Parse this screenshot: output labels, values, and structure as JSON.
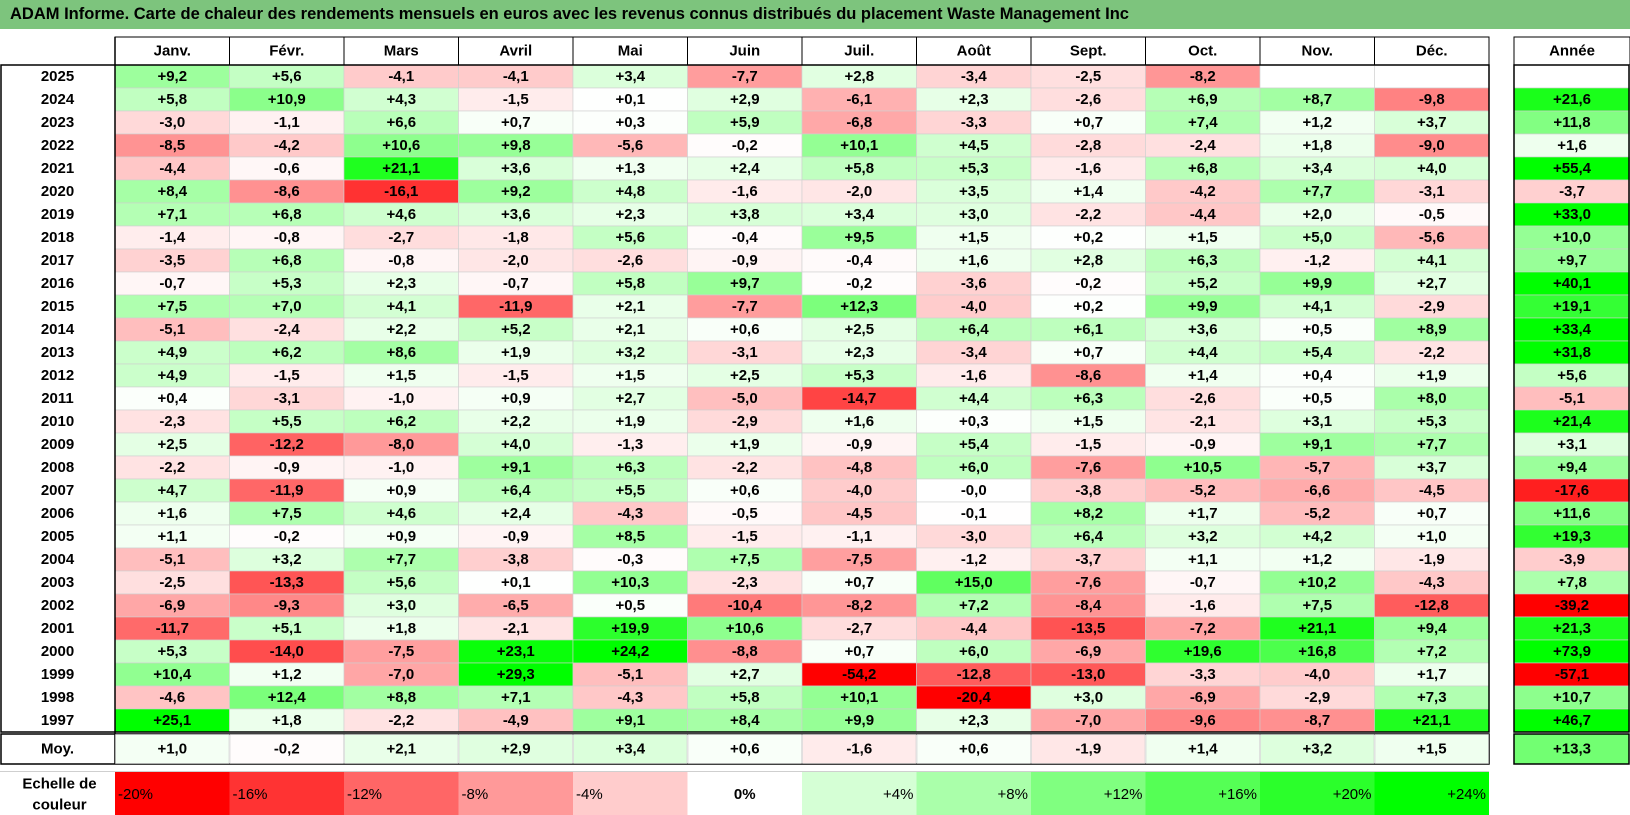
{
  "title": "ADAM Informe. Carte de chaleur des rendements mensuels en euros avec les revenus connus distribués du placement Waste Management Inc",
  "chart_data": {
    "type": "heatmap",
    "title": "ADAM Informe. Carte de chaleur des rendements mensuels en euros avec les revenus connus distribués du placement Waste Management Inc",
    "months": [
      "Janv.",
      "Févr.",
      "Mars",
      "Avril",
      "Mai",
      "Juin",
      "Juil.",
      "Août",
      "Sept.",
      "Oct.",
      "Nov.",
      "Déc."
    ],
    "year_column_label": "Année",
    "average_row_label": "Moy.",
    "rows": [
      {
        "year": "2025",
        "values": [
          "+9,2",
          "+5,6",
          "-4,1",
          "-4,1",
          "+3,4",
          "-7,7",
          "+2,8",
          "-3,4",
          "-2,5",
          "-8,2",
          "",
          ""
        ],
        "annual": ""
      },
      {
        "year": "2024",
        "values": [
          "+5,8",
          "+10,9",
          "+4,3",
          "-1,5",
          "+0,1",
          "+2,9",
          "-6,1",
          "+2,3",
          "-2,6",
          "+6,9",
          "+8,7",
          "-9,8"
        ],
        "annual": "+21,6"
      },
      {
        "year": "2023",
        "values": [
          "-3,0",
          "-1,1",
          "+6,6",
          "+0,7",
          "+0,3",
          "+5,9",
          "-6,8",
          "-3,3",
          "+0,7",
          "+7,4",
          "+1,2",
          "+3,7"
        ],
        "annual": "+11,8"
      },
      {
        "year": "2022",
        "values": [
          "-8,5",
          "-4,2",
          "+10,6",
          "+9,8",
          "-5,6",
          "-0,2",
          "+10,1",
          "+4,5",
          "-2,8",
          "-2,4",
          "+1,8",
          "-9,0"
        ],
        "annual": "+1,6"
      },
      {
        "year": "2021",
        "values": [
          "-4,4",
          "-0,6",
          "+21,1",
          "+3,6",
          "+1,3",
          "+2,4",
          "+5,8",
          "+5,3",
          "-1,6",
          "+6,8",
          "+3,4",
          "+4,0"
        ],
        "annual": "+55,4"
      },
      {
        "year": "2020",
        "values": [
          "+8,4",
          "-8,6",
          "-16,1",
          "+9,2",
          "+4,8",
          "-1,6",
          "-2,0",
          "+3,5",
          "+1,4",
          "-4,2",
          "+7,7",
          "-3,1"
        ],
        "annual": "-3,7"
      },
      {
        "year": "2019",
        "values": [
          "+7,1",
          "+6,8",
          "+4,6",
          "+3,6",
          "+2,3",
          "+3,8",
          "+3,4",
          "+3,0",
          "-2,2",
          "-4,4",
          "+2,0",
          "-0,5"
        ],
        "annual": "+33,0"
      },
      {
        "year": "2018",
        "values": [
          "-1,4",
          "-0,8",
          "-2,7",
          "-1,8",
          "+5,6",
          "-0,4",
          "+9,5",
          "+1,5",
          "+0,2",
          "+1,5",
          "+5,0",
          "-5,6"
        ],
        "annual": "+10,0"
      },
      {
        "year": "2017",
        "values": [
          "-3,5",
          "+6,8",
          "-0,8",
          "-2,0",
          "-2,6",
          "-0,9",
          "-0,4",
          "+1,6",
          "+2,8",
          "+6,3",
          "-1,2",
          "+4,1"
        ],
        "annual": "+9,7"
      },
      {
        "year": "2016",
        "values": [
          "-0,7",
          "+5,3",
          "+2,3",
          "-0,7",
          "+5,8",
          "+9,7",
          "-0,2",
          "-3,6",
          "-0,2",
          "+5,2",
          "+9,9",
          "+2,7"
        ],
        "annual": "+40,1"
      },
      {
        "year": "2015",
        "values": [
          "+7,5",
          "+7,0",
          "+4,1",
          "-11,9",
          "+2,1",
          "-7,7",
          "+12,3",
          "-4,0",
          "+0,2",
          "+9,9",
          "+4,1",
          "-2,9"
        ],
        "annual": "+19,1"
      },
      {
        "year": "2014",
        "values": [
          "-5,1",
          "-2,4",
          "+2,2",
          "+5,2",
          "+2,1",
          "+0,6",
          "+2,5",
          "+6,4",
          "+6,1",
          "+3,6",
          "+0,5",
          "+8,9"
        ],
        "annual": "+33,4"
      },
      {
        "year": "2013",
        "values": [
          "+4,9",
          "+6,2",
          "+8,6",
          "+1,9",
          "+3,2",
          "-3,1",
          "+2,3",
          "-3,4",
          "+0,7",
          "+4,4",
          "+5,4",
          "-2,2"
        ],
        "annual": "+31,8"
      },
      {
        "year": "2012",
        "values": [
          "+4,9",
          "-1,5",
          "+1,5",
          "-1,5",
          "+1,5",
          "+2,5",
          "+5,3",
          "-1,6",
          "-8,6",
          "+1,4",
          "+0,4",
          "+1,9"
        ],
        "annual": "+5,6"
      },
      {
        "year": "2011",
        "values": [
          "+0,4",
          "-3,1",
          "-1,0",
          "+0,9",
          "+2,7",
          "-5,0",
          "-14,7",
          "+4,4",
          "+6,3",
          "-2,6",
          "+0,5",
          "+8,0"
        ],
        "annual": "-5,1"
      },
      {
        "year": "2010",
        "values": [
          "-2,3",
          "+5,5",
          "+6,2",
          "+2,2",
          "+1,9",
          "-2,9",
          "+1,6",
          "+0,3",
          "+1,5",
          "-2,1",
          "+3,1",
          "+5,3"
        ],
        "annual": "+21,4"
      },
      {
        "year": "2009",
        "values": [
          "+2,5",
          "-12,2",
          "-8,0",
          "+4,0",
          "-1,3",
          "+1,9",
          "-0,9",
          "+5,4",
          "-1,5",
          "-0,9",
          "+9,1",
          "+7,7"
        ],
        "annual": "+3,1"
      },
      {
        "year": "2008",
        "values": [
          "-2,2",
          "-0,9",
          "-1,0",
          "+9,1",
          "+6,3",
          "-2,2",
          "-4,8",
          "+6,0",
          "-7,6",
          "+10,5",
          "-5,7",
          "+3,7"
        ],
        "annual": "+9,4"
      },
      {
        "year": "2007",
        "values": [
          "+4,7",
          "-11,9",
          "+0,9",
          "+6,4",
          "+5,5",
          "+0,6",
          "-4,0",
          "-0,0",
          "-3,8",
          "-5,2",
          "-6,6",
          "-4,5"
        ],
        "annual": "-17,6"
      },
      {
        "year": "2006",
        "values": [
          "+1,6",
          "+7,5",
          "+4,6",
          "+2,4",
          "-4,3",
          "-0,5",
          "-4,5",
          "-0,1",
          "+8,2",
          "+1,7",
          "-5,2",
          "+0,7"
        ],
        "annual": "+11,6"
      },
      {
        "year": "2005",
        "values": [
          "+1,1",
          "-0,2",
          "+0,9",
          "-0,9",
          "+8,5",
          "-1,5",
          "-1,1",
          "-3,0",
          "+6,4",
          "+3,2",
          "+4,2",
          "+1,0"
        ],
        "annual": "+19,3"
      },
      {
        "year": "2004",
        "values": [
          "-5,1",
          "+3,2",
          "+7,7",
          "-3,8",
          "-0,3",
          "+7,5",
          "-7,5",
          "-1,2",
          "-3,7",
          "+1,1",
          "+1,2",
          "-1,9"
        ],
        "annual": "-3,9"
      },
      {
        "year": "2003",
        "values": [
          "-2,5",
          "-13,3",
          "+5,6",
          "+0,1",
          "+10,3",
          "-2,3",
          "+0,7",
          "+15,0",
          "-7,6",
          "-0,7",
          "+10,2",
          "-4,3"
        ],
        "annual": "+7,8"
      },
      {
        "year": "2002",
        "values": [
          "-6,9",
          "-9,3",
          "+3,0",
          "-6,5",
          "+0,5",
          "-10,4",
          "-8,2",
          "+7,2",
          "-8,4",
          "-1,6",
          "+7,5",
          "-12,8"
        ],
        "annual": "-39,2"
      },
      {
        "year": "2001",
        "values": [
          "-11,7",
          "+5,1",
          "+1,8",
          "-2,1",
          "+19,9",
          "+10,6",
          "-2,7",
          "-4,4",
          "-13,5",
          "-7,2",
          "+21,1",
          "+9,4"
        ],
        "annual": "+21,3"
      },
      {
        "year": "2000",
        "values": [
          "+5,3",
          "-14,0",
          "-7,5",
          "+23,1",
          "+24,2",
          "-8,8",
          "+0,7",
          "+6,0",
          "-6,9",
          "+19,6",
          "+16,8",
          "+7,2"
        ],
        "annual": "+73,9"
      },
      {
        "year": "1999",
        "values": [
          "+10,4",
          "+1,2",
          "-7,0",
          "+29,3",
          "-5,1",
          "+2,7",
          "-54,2",
          "-12,8",
          "-13,0",
          "-3,3",
          "-4,0",
          "+1,7"
        ],
        "annual": "-57,1"
      },
      {
        "year": "1998",
        "values": [
          "-4,6",
          "+12,4",
          "+8,8",
          "+7,1",
          "-4,3",
          "+5,8",
          "+10,1",
          "-20,4",
          "+3,0",
          "-6,9",
          "-2,9",
          "+7,3"
        ],
        "annual": "+10,7"
      },
      {
        "year": "1997",
        "values": [
          "+25,1",
          "+1,8",
          "-2,2",
          "-4,9",
          "+9,1",
          "+8,4",
          "+9,9",
          "+2,3",
          "-7,0",
          "-9,6",
          "-8,7",
          "+21,1"
        ],
        "annual": "+46,7"
      }
    ],
    "averages": [
      "+1,0",
      "-0,2",
      "+2,1",
      "+2,9",
      "+3,4",
      "+0,6",
      "-1,6",
      "+0,6",
      "-1,9",
      "+1,4",
      "+3,2",
      "+1,5"
    ],
    "average_annual": "+13,3",
    "scale_label": "Echelle de couleur",
    "scale": [
      {
        "label": "-20%",
        "value": -20
      },
      {
        "label": "-16%",
        "value": -16
      },
      {
        "label": "-12%",
        "value": -12
      },
      {
        "label": "-8%",
        "value": -8
      },
      {
        "label": "-4%",
        "value": -4
      },
      {
        "label": "0%",
        "value": 0
      },
      {
        "label": "+4%",
        "value": 4
      },
      {
        "label": "+8%",
        "value": 8
      },
      {
        "label": "+12%",
        "value": 12
      },
      {
        "label": "+16%",
        "value": 16
      },
      {
        "label": "+20%",
        "value": 20
      },
      {
        "label": "+24%",
        "value": 24
      }
    ],
    "colors": {
      "negative_max": "#ff0000",
      "neutral": "#ffffff",
      "positive_max": "#00ff00",
      "title_background": "#7dc47d",
      "grid": "#000000"
    },
    "color_range": [
      -20,
      24
    ]
  }
}
